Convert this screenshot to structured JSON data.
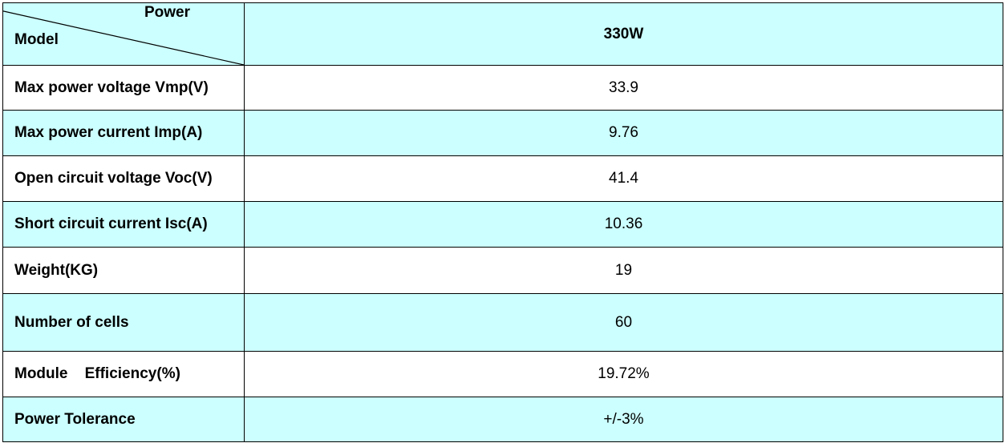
{
  "header": {
    "corner_top": "Power",
    "corner_bottom": "Model",
    "model_value": "330W"
  },
  "rows": [
    {
      "label": "Max power voltage Vmp(V)",
      "value": "33.9"
    },
    {
      "label": "Max power current Imp(A)",
      "value": "9.76"
    },
    {
      "label": "Open circuit voltage Voc(V)",
      "value": "41.4"
    },
    {
      "label": "Short circuit current Isc(A)",
      "value": "10.36"
    },
    {
      "label": "Weight(KG)",
      "value": "19"
    },
    {
      "label": "Number of cells",
      "value": "60"
    },
    {
      "label": "Module    Efficiency(%)",
      "value": "19.72%"
    },
    {
      "label": "Power Tolerance",
      "value": "+/-3%"
    }
  ],
  "colors": {
    "cyan_row": "#ccffff",
    "white_row": "#ffffff",
    "border": "#000000"
  }
}
